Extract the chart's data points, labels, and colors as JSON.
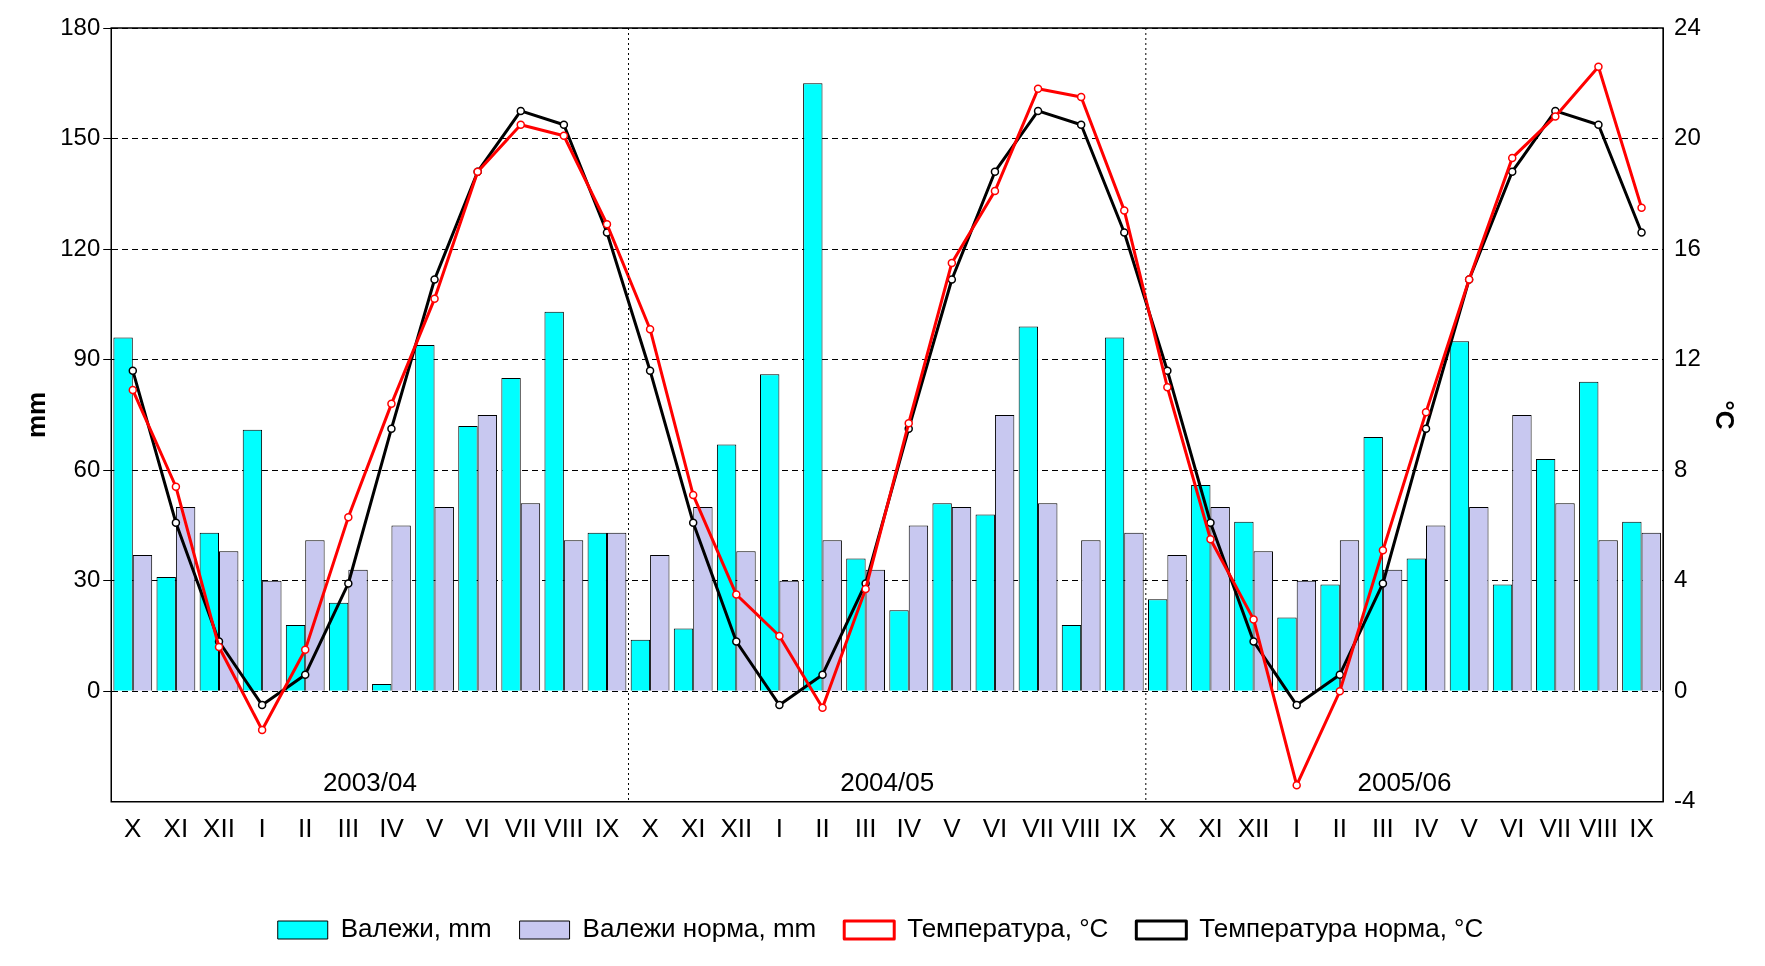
{
  "chart_data": {
    "type": "bar",
    "categories": [
      "X",
      "XI",
      "XII",
      "I",
      "II",
      "III",
      "IV",
      "V",
      "VI",
      "VII",
      "VIII",
      "IX",
      "X",
      "XI",
      "XII",
      "I",
      "II",
      "III",
      "IV",
      "V",
      "VI",
      "VII",
      "VIII",
      "IX",
      "X",
      "XI",
      "XII",
      "I",
      "II",
      "III",
      "IV",
      "V",
      "VI",
      "VII",
      "VIII",
      "IX"
    ],
    "series": [
      {
        "name": "Валежи, mm",
        "color": "#00ffff",
        "values": [
          96,
          31,
          43,
          71,
          18,
          24,
          2,
          94,
          72,
          85,
          103,
          43,
          14,
          17,
          67,
          86,
          165,
          36,
          22,
          51,
          48,
          99,
          18,
          96,
          25,
          56,
          46,
          20,
          29,
          69,
          36,
          95,
          29,
          63,
          84,
          46
        ]
      },
      {
        "name": "Валежи норма, mm",
        "color": "#c8c8f0",
        "values": [
          37,
          50,
          38,
          30,
          41,
          33,
          45,
          50,
          75,
          51,
          41,
          43,
          37,
          50,
          38,
          30,
          41,
          33,
          45,
          50,
          75,
          51,
          41,
          43,
          37,
          50,
          38,
          30,
          41,
          33,
          45,
          50,
          75,
          51,
          41,
          43
        ]
      },
      {
        "name": "Температура, °C",
        "type": "line",
        "axis": "y2",
        "color": "#ff0000",
        "values": [
          10.9,
          7.4,
          1.6,
          -1.4,
          1.5,
          6.3,
          10.4,
          14.2,
          18.8,
          20.5,
          20.1,
          16.9,
          13.1,
          7.1,
          3.5,
          2.0,
          -0.6,
          3.7,
          9.7,
          15.5,
          18.1,
          21.8,
          21.5,
          17.4,
          11.0,
          5.5,
          2.6,
          -3.4,
          0.0,
          5.1,
          10.1,
          14.9,
          19.3,
          20.8,
          22.6,
          17.5
        ]
      },
      {
        "name": "Температура норма, °C",
        "type": "line",
        "axis": "y2",
        "color": "#000000",
        "values": [
          11.6,
          6.1,
          1.8,
          -0.5,
          0.6,
          3.9,
          9.5,
          14.9,
          18.8,
          21.0,
          20.5,
          16.6,
          11.6,
          6.1,
          1.8,
          -0.5,
          0.6,
          3.9,
          9.5,
          14.9,
          18.8,
          21.0,
          20.5,
          16.6,
          11.6,
          6.1,
          1.8,
          -0.5,
          0.6,
          3.9,
          9.5,
          14.9,
          18.8,
          21.0,
          20.5,
          16.6
        ]
      }
    ],
    "ylabel": "mm",
    "y2label": "°C",
    "ylim": [
      -30,
      180
    ],
    "yticks": [
      0,
      30,
      60,
      90,
      120,
      150,
      180
    ],
    "y2lim": [
      -4,
      24
    ],
    "y2ticks": [
      -4,
      0,
      4,
      8,
      12,
      16,
      20,
      24
    ],
    "annotations": [
      "2003/04",
      "2004/05",
      "2005/06"
    ],
    "grid": "y",
    "legend": "bottom",
    "marker": "circle",
    "line_style": "solid"
  }
}
